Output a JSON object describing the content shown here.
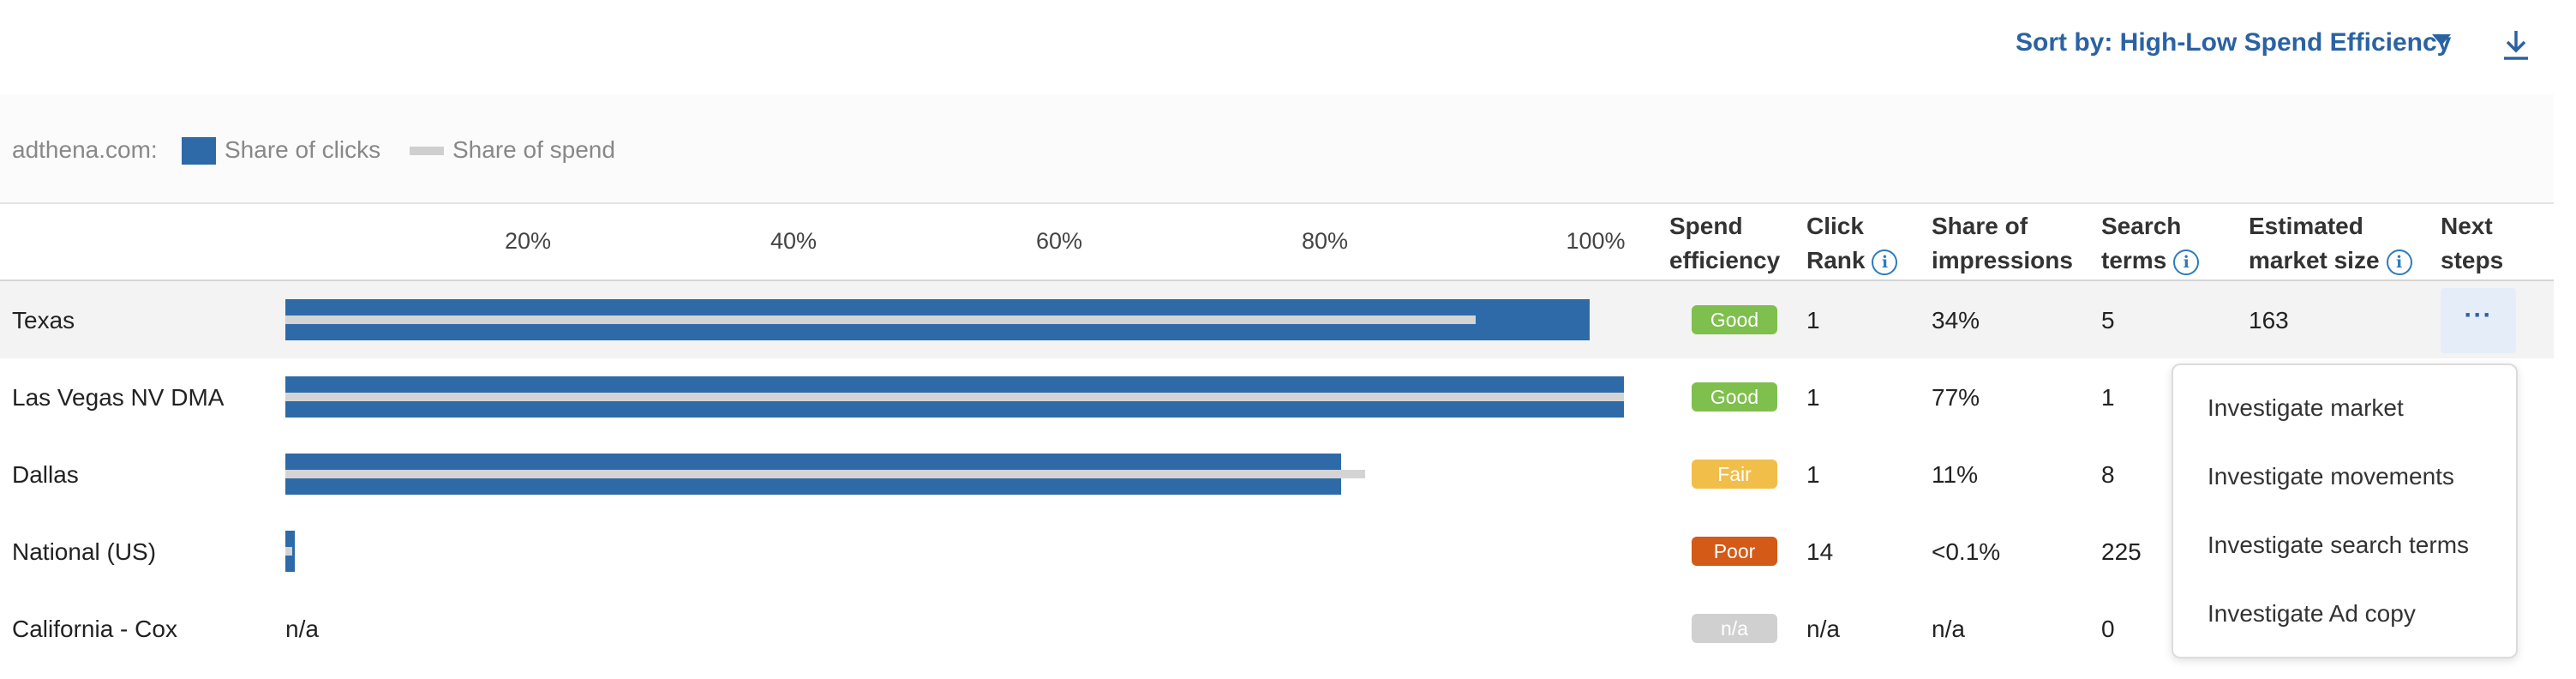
{
  "toolbar": {
    "sort_label": "Sort by: High-Low Spend Efficiency"
  },
  "legend": {
    "domain": "adthena.com:",
    "clicks_label": "Share of clicks",
    "spend_label": "Share of spend"
  },
  "colors": {
    "clicks": "#2e6aa8",
    "spend": "#d4d4d4",
    "good": "#7fbf4d",
    "fair": "#f2be4a",
    "poor": "#d35a17",
    "na": "#d0d0d0",
    "accent": "#2b62a3"
  },
  "axis": {
    "ticks": [
      "20%",
      "40%",
      "60%",
      "80%",
      "100%"
    ]
  },
  "columns": {
    "spend_efficiency": [
      "Spend",
      "efficiency"
    ],
    "click_rank": [
      "Click",
      "Rank"
    ],
    "share_impressions": [
      "Share of",
      "impressions"
    ],
    "search_terms": [
      "Search",
      "terms"
    ],
    "market_size": [
      "Estimated",
      "market size"
    ],
    "next_steps": [
      "Next",
      "steps"
    ]
  },
  "rows": [
    {
      "name": "Texas",
      "clicks": 98.8,
      "spend": 90.2,
      "bar_text": "",
      "efficiency": "Good",
      "rank": "1",
      "impressions": "34%",
      "terms": "5",
      "market": "163"
    },
    {
      "name": "Las Vegas NV DMA",
      "clicks": 101.4,
      "spend": 101.4,
      "bar_text": "",
      "efficiency": "Good",
      "rank": "1",
      "impressions": "77%",
      "terms": "1",
      "market": ""
    },
    {
      "name": "Dallas",
      "clicks": 80.0,
      "spend": 81.8,
      "bar_text": "",
      "efficiency": "Fair",
      "rank": "1",
      "impressions": "11%",
      "terms": "8",
      "market": ""
    },
    {
      "name": "National (US)",
      "clicks": 0.7,
      "spend": 0.5,
      "bar_text": "",
      "efficiency": "Poor",
      "rank": "14",
      "impressions": "<0.1%",
      "terms": "225",
      "market": ""
    },
    {
      "name": "California - Cox",
      "clicks": 0,
      "spend": 0,
      "bar_text": "n/a",
      "efficiency": "n/a",
      "rank": "n/a",
      "impressions": "n/a",
      "terms": "0",
      "market": ""
    }
  ],
  "next_steps": {
    "button_label": "···"
  },
  "menu": {
    "items": [
      "Investigate market",
      "Investigate movements",
      "Investigate search terms",
      "Investigate Ad copy"
    ]
  }
}
